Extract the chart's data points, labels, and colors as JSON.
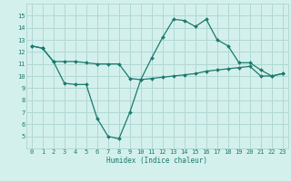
{
  "line1_x": [
    0,
    1,
    2,
    3,
    4,
    5,
    6,
    7,
    8,
    9,
    10,
    11,
    12,
    13,
    14,
    15,
    16,
    17,
    18,
    19,
    20,
    21,
    22,
    23
  ],
  "line1_y": [
    12.5,
    12.3,
    11.2,
    11.2,
    11.2,
    11.1,
    11.0,
    11.0,
    11.0,
    9.8,
    9.7,
    11.5,
    13.2,
    14.7,
    14.6,
    14.1,
    14.7,
    13.0,
    12.5,
    11.1,
    11.1,
    10.5,
    10.0,
    10.2
  ],
  "line2_x": [
    0,
    1,
    2,
    3,
    4,
    5,
    6,
    7,
    8,
    9,
    10,
    11,
    12,
    13,
    14,
    15,
    16,
    17,
    18,
    19,
    20,
    21,
    22,
    23
  ],
  "line2_y": [
    12.5,
    12.3,
    11.2,
    9.4,
    9.3,
    9.3,
    6.5,
    5.0,
    4.8,
    7.0,
    9.7,
    9.8,
    9.9,
    10.0,
    10.1,
    10.2,
    10.4,
    10.5,
    10.6,
    10.7,
    10.8,
    10.0,
    10.0,
    10.2
  ],
  "line_color": "#1a7a6e",
  "bg_color": "#d4f0ec",
  "grid_color": "#b0d8d4",
  "xlabel": "Humidex (Indice chaleur)",
  "ylim": [
    4,
    16
  ],
  "xlim": [
    -0.5,
    23.5
  ],
  "yticks": [
    5,
    6,
    7,
    8,
    9,
    10,
    11,
    12,
    13,
    14,
    15
  ],
  "xticks": [
    0,
    1,
    2,
    3,
    4,
    5,
    6,
    7,
    8,
    9,
    10,
    11,
    12,
    13,
    14,
    15,
    16,
    17,
    18,
    19,
    20,
    21,
    22,
    23
  ],
  "marker_size": 2.0,
  "line_width": 0.9,
  "tick_fontsize": 5.0,
  "xlabel_fontsize": 5.5
}
